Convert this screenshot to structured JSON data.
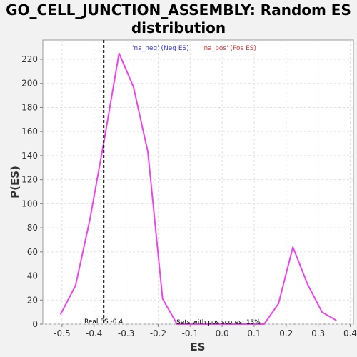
{
  "chart_data": {
    "type": "line",
    "title_line1": "GO_CELL_JUNCTION_ASSEMBLY: Random ES",
    "title_line2": "distribution",
    "xlabel": "ES",
    "ylabel": "P(ES)",
    "xlim": [
      -0.56,
      0.41
    ],
    "ylim": [
      0,
      236
    ],
    "xticks": [
      -0.5,
      -0.4,
      -0.3,
      -0.2,
      -0.1,
      0.0,
      0.1,
      0.2,
      0.3,
      0.4
    ],
    "xtick_labels": [
      "-0.5",
      "-0.4",
      "-0.3",
      "-0.2",
      "-0.1",
      "0.0",
      "0.1",
      "0.2",
      "0.3",
      "0.4"
    ],
    "yticks": [
      0,
      20,
      40,
      60,
      80,
      100,
      120,
      140,
      160,
      180,
      200,
      220
    ],
    "ytick_labels": [
      "0",
      "20",
      "40",
      "60",
      "80",
      "100",
      "120",
      "140",
      "160",
      "180",
      "200",
      "220"
    ],
    "grid": true,
    "series": [
      {
        "color": "#ee44ee",
        "x": [
          -0.505,
          -0.458,
          -0.413,
          -0.367,
          -0.322,
          -0.277,
          -0.232,
          -0.186,
          -0.141,
          -0.096,
          -0.051,
          -0.005,
          0.04,
          0.085,
          0.131,
          0.176,
          0.221,
          0.267,
          0.312,
          0.357
        ],
        "y": [
          8,
          32,
          87,
          155,
          225,
          197,
          143,
          21,
          0,
          0,
          0,
          0,
          0,
          0,
          0,
          17,
          64,
          33,
          10,
          3
        ]
      }
    ],
    "real_es": -0.37,
    "real_es_color": "#000000",
    "legend": [
      {
        "label": "'na_neg' (Neg ES)",
        "color": "#3333ee"
      },
      {
        "label": "'na_pos' (Pos ES)",
        "color": "#dd3333"
      }
    ],
    "legend_position": "top",
    "annotations": {
      "real_es_label": "Real ES -0.4",
      "pos_scores_label": "Sets with pos scores: 13%"
    }
  }
}
